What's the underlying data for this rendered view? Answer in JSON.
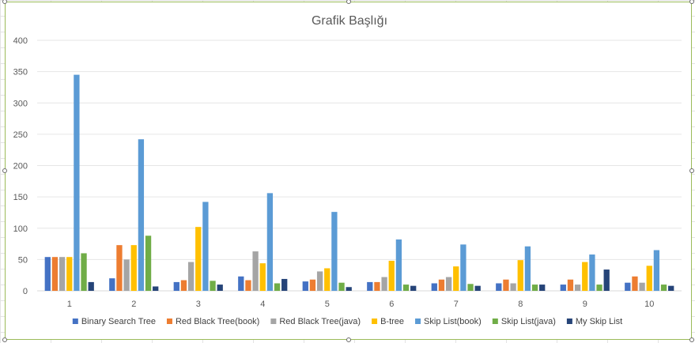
{
  "chart_data": {
    "type": "bar",
    "title": "Grafik Başlığı",
    "xlabel": "",
    "ylabel": "",
    "ylim": [
      0,
      400
    ],
    "yticks": [
      "0",
      "50",
      "100",
      "150",
      "200",
      "250",
      "300",
      "350",
      "400"
    ],
    "grid": true,
    "legend_position": "bottom",
    "categories": [
      "1",
      "2",
      "3",
      "4",
      "5",
      "6",
      "7",
      "8",
      "9",
      "10"
    ],
    "series": [
      {
        "name": "Binary Search Tree",
        "color": "#4472c4",
        "values": [
          54,
          20,
          14,
          23,
          15,
          14,
          12,
          12,
          10,
          13
        ]
      },
      {
        "name": "Red Black Tree(book)",
        "color": "#ed7d31",
        "values": [
          54,
          73,
          17,
          17,
          18,
          14,
          18,
          18,
          18,
          23
        ]
      },
      {
        "name": "Red Black Tree(java)",
        "color": "#a5a5a5",
        "values": [
          54,
          50,
          46,
          63,
          31,
          22,
          22,
          12,
          10,
          13
        ]
      },
      {
        "name": "B-tree",
        "color": "#ffc000",
        "values": [
          54,
          73,
          102,
          44,
          36,
          48,
          39,
          49,
          46,
          40
        ]
      },
      {
        "name": "Skip List(book)",
        "color": "#5b9bd5",
        "values": [
          345,
          242,
          142,
          156,
          126,
          82,
          74,
          71,
          58,
          65
        ]
      },
      {
        "name": "Skip List(java)",
        "color": "#70ad47",
        "values": [
          60,
          88,
          16,
          12,
          13,
          10,
          11,
          10,
          10,
          10
        ]
      },
      {
        "name": "My Skip List",
        "color": "#264478",
        "values": [
          14,
          7,
          10,
          19,
          6,
          8,
          8,
          10,
          34,
          8
        ]
      }
    ]
  }
}
